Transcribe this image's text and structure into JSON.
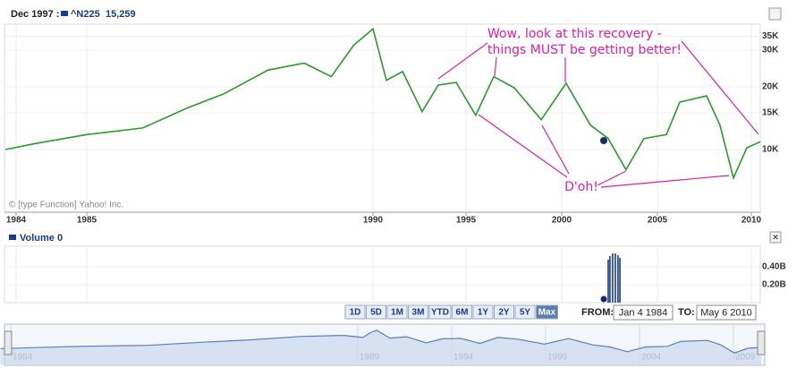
{
  "header": {
    "date": "Dec 1997 :",
    "symbol": "^N225",
    "value": "15,259"
  },
  "watermark": "© [type Function] Yahoo! Inc.",
  "chart_data": [
    {
      "type": "line",
      "log_y": true,
      "grid": true,
      "xlim": [
        1983.85,
        2010.5
      ],
      "xticks": [
        1984,
        1985,
        1990,
        1995,
        2000,
        2005,
        2010
      ],
      "ylim": [
        5000,
        40000
      ],
      "yticks": [
        {
          "value": 10000,
          "label": "10K"
        },
        {
          "value": 15000,
          "label": "15K"
        },
        {
          "value": 20000,
          "label": "20K"
        },
        {
          "value": 30000,
          "label": "30K"
        },
        {
          "value": 35000,
          "label": "35K"
        }
      ],
      "series": [
        {
          "name": "^N225",
          "color": "#2a9a2a",
          "x": [
            1983.85,
            1984.28,
            1985.0,
            1985.98,
            1986.77,
            1987.39,
            1988.17,
            1988.8,
            1989.27,
            1989.66,
            1990.0,
            1990.72,
            1991.59,
            1992.64,
            1993.51,
            1994.47,
            1995.51,
            1996.45,
            1997.52,
            1998.93,
            2000.23,
            2001.5,
            2002.43,
            2003.36,
            2004.3,
            2005.48,
            2006.19,
            2007.62,
            2008.33,
            2009.05,
            2009.76,
            2010.48
          ],
          "values": [
            10000,
            10700,
            11800,
            12700,
            15900,
            18500,
            24100,
            26000,
            22400,
            31600,
            38000,
            21500,
            23700,
            15200,
            20400,
            21000,
            14600,
            22400,
            19800,
            13900,
            20800,
            13100,
            11300,
            8000,
            11300,
            11800,
            16900,
            18100,
            13100,
            7300,
            10200,
            10900
          ]
        }
      ],
      "annotations": [
        {
          "lines": [
            "Wow, look at this recovery -",
            "things MUST be getting better!"
          ],
          "color": "#e020a0"
        },
        {
          "lines": [
            "D'oh!"
          ],
          "color": "#e020a0"
        }
      ]
    },
    {
      "type": "bar",
      "title": "Volume",
      "legend_value": "0",
      "xlim": [
        1983.85,
        2010.5
      ],
      "ylim": [
        0,
        0.63
      ],
      "yticks": [
        {
          "value": 0.2,
          "label": "0.20B"
        },
        {
          "value": 0.4,
          "label": "0.40B"
        }
      ],
      "series": [
        {
          "name": "Volume",
          "color": "#1a3a8a",
          "x": [
            2002.43,
            2002.52,
            2002.66,
            2002.8,
            2002.94,
            2003.04
          ],
          "values": [
            0.48,
            0.52,
            0.55,
            0.55,
            0.53,
            0.5
          ]
        }
      ]
    }
  ],
  "range_buttons": [
    "1D",
    "5D",
    "1M",
    "3M",
    "YTD",
    "6M",
    "1Y",
    "2Y",
    "5Y",
    "Max"
  ],
  "selected_range": "Max",
  "from_label": "FROM:",
  "from": "Jan 4 1984",
  "to_label": "TO:",
  "to": "May 6 2010",
  "navigator": {
    "ticks": [
      1984,
      1989,
      1994,
      1999,
      2004,
      2009
    ]
  }
}
